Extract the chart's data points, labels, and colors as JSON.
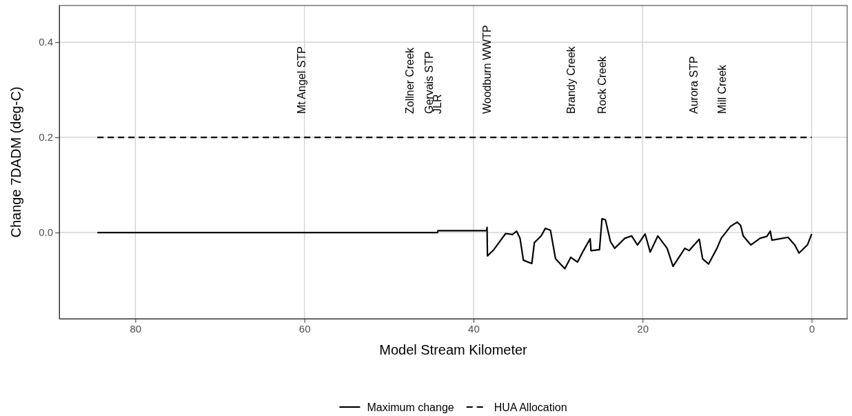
{
  "chart_data": {
    "type": "line",
    "xlabel": "Model Stream Kilometer",
    "ylabel": "Change 7DADM (deg-C)",
    "xlim": [
      89,
      -4.2
    ],
    "xticks": [
      80,
      60,
      40,
      20,
      0
    ],
    "ylim": [
      -0.181,
      0.477
    ],
    "yticks": [
      {
        "value": 0,
        "label": "0.0"
      },
      {
        "value": 0.2,
        "label": "0.2"
      },
      {
        "value": 0.4,
        "label": "0.4"
      }
    ],
    "grid": true,
    "legend": "bottom",
    "series": [
      {
        "name": "Maximum change",
        "color": "#000000",
        "line_style": "solid",
        "x": [
          84.5,
          44.25,
          44.2,
          38.45,
          38.4,
          38.35,
          37.6,
          36.9,
          36.2,
          35.4,
          34.9,
          34.5,
          34.1,
          33.1,
          32.8,
          32.0,
          31.5,
          30.9,
          30.3,
          29.2,
          28.5,
          27.7,
          27.0,
          26.2,
          26.1,
          25.1,
          24.8,
          24.4,
          23.8,
          23.3,
          22.1,
          21.3,
          20.6,
          19.7,
          19.1,
          18.2,
          17.1,
          16.4,
          15.0,
          14.5,
          13.3,
          12.9,
          12.2,
          11.2,
          10.7,
          9.6,
          8.8,
          8.4,
          8.1,
          7.2,
          6.1,
          5.3,
          4.9,
          4.7,
          2.8,
          2.0,
          1.5,
          0.5,
          0
        ],
        "values": [
          0,
          0,
          0.004,
          0.004,
          0.011,
          -0.049,
          -0.036,
          -0.019,
          -0.002,
          -0.004,
          0.003,
          -0.012,
          -0.058,
          -0.065,
          -0.021,
          -0.007,
          0.009,
          0.005,
          -0.055,
          -0.076,
          -0.052,
          -0.062,
          -0.038,
          -0.013,
          -0.038,
          -0.036,
          0.029,
          0.027,
          -0.019,
          -0.033,
          -0.012,
          -0.007,
          -0.026,
          -0.003,
          -0.041,
          -0.007,
          -0.033,
          -0.071,
          -0.033,
          -0.038,
          -0.014,
          -0.055,
          -0.066,
          -0.033,
          -0.012,
          0.013,
          0.022,
          0.015,
          -0.007,
          -0.026,
          -0.012,
          -0.008,
          0.003,
          -0.016,
          -0.01,
          -0.026,
          -0.043,
          -0.026,
          -0.003
        ]
      },
      {
        "name": "HUA Allocation",
        "color": "#000000",
        "line_style": "dashed",
        "x": [
          84.5,
          0
        ],
        "values": [
          0.2,
          0.2
        ]
      }
    ],
    "annotations": [
      "Mt Angel STP",
      "Zollner Creek",
      "Gervais STP",
      "JLR",
      "Woodburn WWTP",
      "Brandy Creek",
      "Rock Creek",
      "Aurora STP",
      "Mill Creek"
    ]
  }
}
